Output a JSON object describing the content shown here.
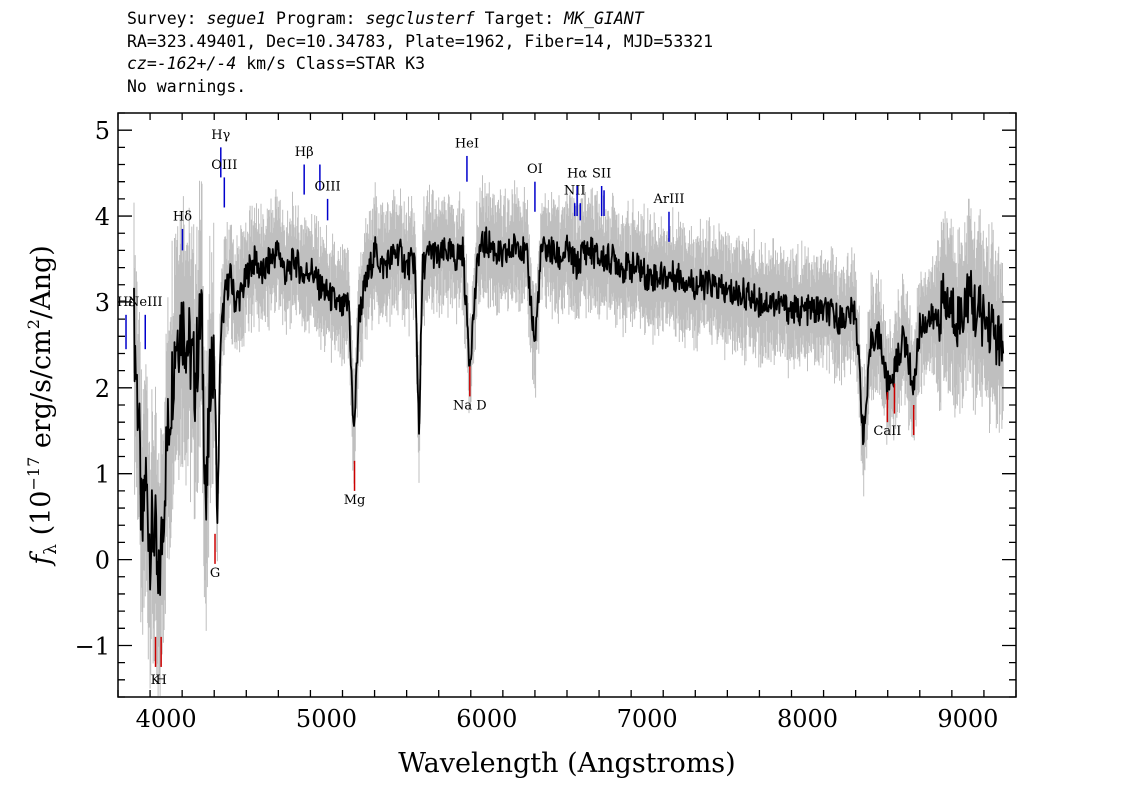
{
  "header": {
    "survey_label": "Survey:",
    "survey": "segue1",
    "program_label": "Program:",
    "program": "segclusterf",
    "target_label": "Target:",
    "target": "MK_GIANT",
    "line2": "RA=323.49401, Dec=10.34783, Plate=1962, Fiber=14, MJD=53321",
    "cz_label": "cz=",
    "cz_value": "-162+/-4",
    "cz_rest": " km/s Class=STAR K3",
    "warnings": "No warnings."
  },
  "chart_data": {
    "type": "line",
    "xlabel": "Wavelength (Angstroms)",
    "ylabel": "fλ (10⁻¹⁷ erg/s/cm²/Ang)",
    "xlim": [
      3700,
      9300
    ],
    "ylim": [
      -1.6,
      5.2
    ],
    "x_ticks": [
      4000,
      5000,
      6000,
      7000,
      8000,
      9000
    ],
    "y_ticks": [
      -1,
      0,
      1,
      2,
      3,
      4,
      5
    ],
    "grid": false,
    "colors": {
      "flux": "#000000",
      "error_band": "#bfbfbf",
      "emission": "#0000cc",
      "absorption": "#cc0000"
    },
    "series": [
      {
        "role": "flux",
        "x": [
          3800,
          3830,
          3850,
          3870,
          3900,
          3930,
          3950,
          3975,
          4000,
          4030,
          4060,
          4100,
          4140,
          4180,
          4220,
          4250,
          4280,
          4305,
          4320,
          4340,
          4370,
          4400,
          4430,
          4470,
          4520,
          4560,
          4600,
          4650,
          4700,
          4750,
          4800,
          4860,
          4900,
          4950,
          5000,
          5050,
          5100,
          5140,
          5168,
          5180,
          5200,
          5230,
          5260,
          5300,
          5350,
          5400,
          5450,
          5500,
          5550,
          5577,
          5600,
          5650,
          5700,
          5750,
          5800,
          5850,
          5893,
          5950,
          6000,
          6050,
          6100,
          6150,
          6200,
          6250,
          6300,
          6340,
          6400,
          6450,
          6500,
          6563,
          6600,
          6650,
          6700,
          6750,
          6800,
          6850,
          6900,
          6950,
          7000,
          7100,
          7200,
          7300,
          7400,
          7500,
          7600,
          7700,
          7800,
          7900,
          8000,
          8100,
          8200,
          8300,
          8350,
          8400,
          8450,
          8498,
          8542,
          8600,
          8662,
          8700,
          8750,
          8800,
          8850,
          8900,
          8950,
          9000,
          9050,
          9100,
          9150,
          9200,
          9220
        ],
        "y": [
          2.7,
          1.6,
          0.1,
          1.0,
          0.2,
          0.4,
          -0.5,
          0.3,
          1.2,
          1.9,
          2.6,
          2.8,
          2.5,
          2.1,
          2.9,
          0.5,
          2.4,
          2.0,
          0.4,
          2.6,
          3.1,
          3.3,
          3.0,
          3.1,
          3.4,
          3.5,
          3.3,
          3.5,
          3.6,
          3.3,
          3.5,
          3.3,
          3.4,
          3.2,
          3.1,
          3.0,
          2.9,
          3.0,
          1.5,
          1.8,
          2.8,
          3.1,
          3.3,
          3.6,
          3.4,
          3.5,
          3.6,
          3.4,
          3.5,
          1.5,
          3.4,
          3.6,
          3.5,
          3.6,
          3.5,
          3.6,
          2.3,
          3.6,
          3.7,
          3.6,
          3.5,
          3.6,
          3.7,
          3.5,
          2.5,
          3.6,
          3.6,
          3.5,
          3.6,
          3.4,
          3.6,
          3.6,
          3.5,
          3.5,
          3.5,
          3.4,
          3.4,
          3.4,
          3.3,
          3.3,
          3.3,
          3.2,
          3.2,
          3.1,
          3.1,
          3.0,
          3.0,
          2.9,
          2.9,
          2.9,
          2.8,
          2.9,
          1.4,
          2.6,
          2.6,
          2.0,
          2.2,
          2.6,
          2.0,
          2.7,
          2.8,
          2.8,
          3.0,
          2.9,
          2.8,
          3.1,
          2.9,
          2.8,
          2.7,
          2.5,
          2.4
        ]
      }
    ],
    "lines": [
      {
        "label": "Hε",
        "x": 3750,
        "type": "emission",
        "y0": 2.45,
        "y1": 2.85,
        "label_y": 2.95
      },
      {
        "label": "NeIII",
        "x": 3870,
        "type": "emission",
        "y0": 2.45,
        "y1": 2.85,
        "label_y": 2.95
      },
      {
        "label": "Hδ",
        "x": 4102,
        "type": "emission",
        "y0": 3.6,
        "y1": 3.85,
        "label_y": 3.95
      },
      {
        "label": "Hγ",
        "x": 4341,
        "type": "emission",
        "y0": 4.45,
        "y1": 4.8,
        "label_y": 4.9
      },
      {
        "label": "OIII",
        "x": 4363,
        "type": "emission",
        "y0": 4.1,
        "y1": 4.45,
        "label_y": 4.55
      },
      {
        "label": "Hβ",
        "x": 4861,
        "type": "emission",
        "y0": 4.25,
        "y1": 4.6,
        "label_y": 4.7
      },
      {
        "label": "OIII",
        "x": 4959,
        "type": "emission",
        "y0": 4.3,
        "y1": 4.6,
        "label_y": null
      },
      {
        "label": "OIII",
        "x": 5007,
        "type": "emission",
        "y0": 3.95,
        "y1": 4.2,
        "label_y": 4.3
      },
      {
        "label": "HeI",
        "x": 5876,
        "type": "emission",
        "y0": 4.4,
        "y1": 4.7,
        "label_y": 4.8
      },
      {
        "label": "OI",
        "x": 6300,
        "type": "emission",
        "y0": 4.05,
        "y1": 4.4,
        "label_y": 4.5
      },
      {
        "label": "NII",
        "x": 6548,
        "type": "emission",
        "y0": 4.0,
        "y1": 4.15,
        "label_y": 4.25
      },
      {
        "label": "Hα",
        "x": 6563,
        "type": "emission",
        "y0": 4.0,
        "y1": 4.35,
        "label_y": 4.45
      },
      {
        "label": "NII",
        "x": 6583,
        "type": "emission",
        "y0": 3.95,
        "y1": 4.15,
        "label_y": null
      },
      {
        "label": "SII",
        "x": 6716,
        "type": "emission",
        "y0": 4.0,
        "y1": 4.35,
        "label_y": 4.45
      },
      {
        "label": "SII",
        "x": 6731,
        "type": "emission",
        "y0": 4.0,
        "y1": 4.3,
        "label_y": null
      },
      {
        "label": "ArIII",
        "x": 7136,
        "type": "emission",
        "y0": 3.7,
        "y1": 4.05,
        "label_y": 4.15
      },
      {
        "label": "K",
        "x": 3934,
        "type": "absorption",
        "y0": -1.25,
        "y1": -0.9,
        "label_y": -1.45
      },
      {
        "label": "H",
        "x": 3969,
        "type": "absorption",
        "y0": -1.25,
        "y1": -0.9,
        "label_y": -1.45
      },
      {
        "label": "G",
        "x": 4305,
        "type": "absorption",
        "y0": -0.05,
        "y1": 0.3,
        "label_y": -0.2
      },
      {
        "label": "Mg",
        "x": 5175,
        "type": "absorption",
        "y0": 0.8,
        "y1": 1.15,
        "label_y": 0.65
      },
      {
        "label": "Na D",
        "x": 5894,
        "type": "absorption",
        "y0": 1.9,
        "y1": 2.25,
        "label_y": 1.75
      },
      {
        "label": "CaII",
        "x": 8498,
        "type": "absorption",
        "y0": 1.6,
        "y1": 1.95,
        "label_y": 1.45
      },
      {
        "label": "CaII",
        "x": 8542,
        "type": "absorption",
        "y0": 1.7,
        "y1": 2.05,
        "label_y": null
      },
      {
        "label": "CaII",
        "x": 8662,
        "type": "absorption",
        "y0": 1.45,
        "y1": 1.8,
        "label_y": null
      }
    ]
  }
}
